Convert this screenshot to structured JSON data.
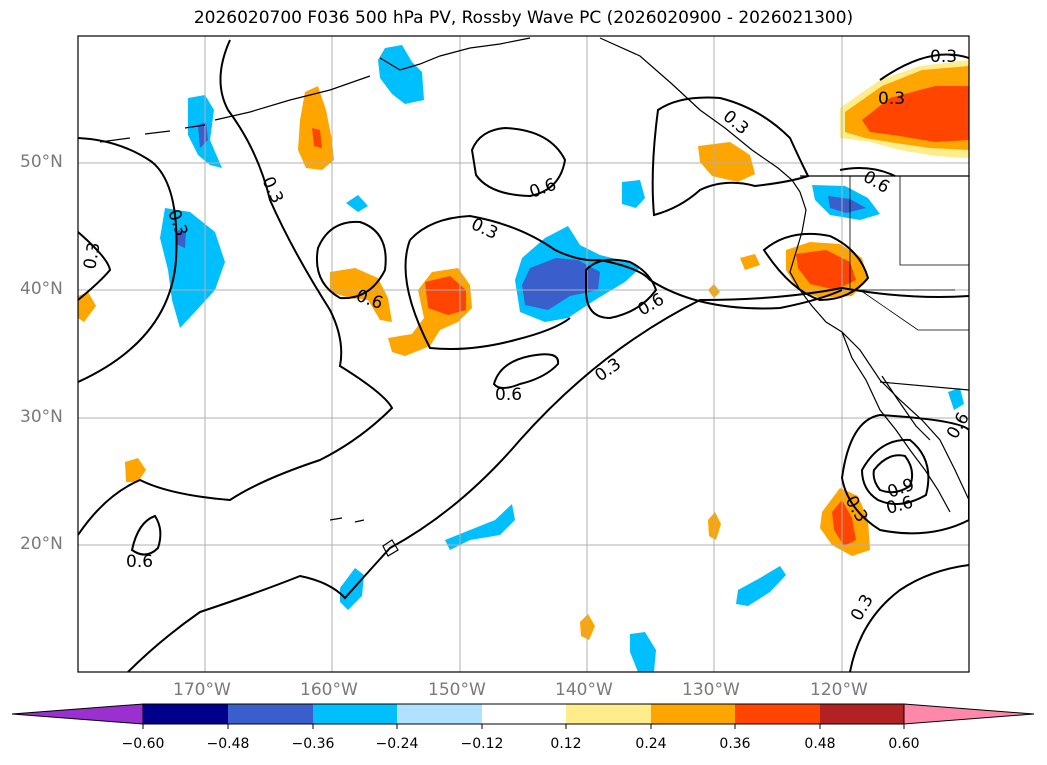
{
  "title": "2026020700 F036 500 hPa PV, Rossby Wave PC (2026020900 - 2026021300)",
  "lon_labels": [
    "170°W",
    "160°W",
    "150°W",
    "140°W",
    "130°W",
    "120°W"
  ],
  "lat_labels": [
    "50°N",
    "40°N",
    "30°N",
    "20°N"
  ],
  "colorbar": {
    "colors": [
      "#9b30d0",
      "#00008b",
      "#3a5fcd",
      "#00bfff",
      "#b0e2ff",
      "#ffffff",
      "#ffec8b",
      "#ffa500",
      "#ff4500",
      "#b22222",
      "#ff88aa"
    ],
    "labels": [
      "−0.60",
      "−0.48",
      "−0.36",
      "−0.24",
      "−0.12",
      "0.12",
      "0.24",
      "0.36",
      "0.48",
      "0.60"
    ]
  },
  "contour_labels": [
    "0.3",
    "0.3",
    "0.3",
    "0.3",
    "0.3",
    "0.3",
    "0.3",
    "0.3",
    "0.3",
    "0.3",
    "0.6",
    "0.6",
    "0.6",
    "0.6",
    "0.6",
    "0.6",
    "0.6",
    "0.6",
    "0.9"
  ]
}
